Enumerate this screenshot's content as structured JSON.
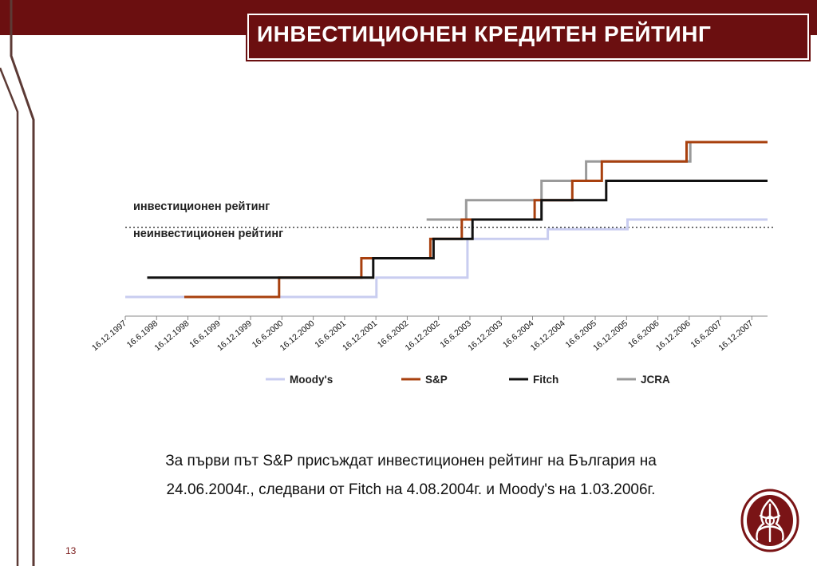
{
  "header": {
    "title": "ИНВЕСТИЦИОНЕН КРЕДИТЕН РЕЙТИНГ"
  },
  "zones": {
    "investment_label": "инвестиционен рейтинг",
    "non_investment_label": "неинвестиционен рейтинг"
  },
  "caption": {
    "line1": "За първи път S&P присъждат инвестиционен рейтинг на България на",
    "line2": "24.06.2004г., следвани от Fitch на 4.08.2004г. и Moody's на 1.03.2006г."
  },
  "page_number": "13",
  "colors": {
    "brand": "#6b0f10",
    "moodys": "#c9cdf0",
    "sp": "#a8400e",
    "fitch": "#111111",
    "jcra": "#9a9a9a"
  },
  "chart_data": {
    "type": "line",
    "step": true,
    "title": "",
    "xlabel": "",
    "ylabel": "",
    "x_ticks": [
      "16.12.1997",
      "16.6.1998",
      "16.12.1998",
      "16.6.1999",
      "16.12.1999",
      "16.6.2000",
      "16.12.2000",
      "16.6.2001",
      "16.12.2001",
      "16.6.2002",
      "16.12.2002",
      "16.6.2003",
      "16.12.2003",
      "16.6.2004",
      "16.12.2004",
      "16.6.2005",
      "16.12.2005",
      "16.6.2006",
      "16.12.2006",
      "16.6.2007",
      "16.12.2007"
    ],
    "x_range": [
      1997.96,
      2008.19
    ],
    "y_range": [
      0,
      9
    ],
    "y_unit": "rating steps (0 = lowest shown; investment grade threshold between 4 and 5)",
    "investment_threshold": 4.6,
    "grid": false,
    "legend_position": "bottom",
    "series": [
      {
        "name": "Moody's",
        "color": "#c9cdf0",
        "points": [
          [
            1997.96,
            1
          ],
          [
            2001.96,
            1
          ],
          [
            2001.96,
            2
          ],
          [
            2003.41,
            2
          ],
          [
            2003.41,
            4
          ],
          [
            2004.69,
            4
          ],
          [
            2004.69,
            4.5
          ],
          [
            2005.96,
            4.5
          ],
          [
            2005.96,
            5
          ],
          [
            2008.19,
            5
          ]
        ]
      },
      {
        "name": "S&P",
        "color": "#a8400e",
        "points": [
          [
            1998.9,
            1
          ],
          [
            2000.41,
            1
          ],
          [
            2000.41,
            2
          ],
          [
            2001.72,
            2
          ],
          [
            2001.72,
            3
          ],
          [
            2002.82,
            3
          ],
          [
            2002.82,
            4
          ],
          [
            2003.32,
            4
          ],
          [
            2003.32,
            5
          ],
          [
            2004.48,
            5
          ],
          [
            2004.48,
            6
          ],
          [
            2005.08,
            6
          ],
          [
            2005.08,
            7
          ],
          [
            2005.55,
            7
          ],
          [
            2005.55,
            8
          ],
          [
            2006.9,
            8
          ],
          [
            2006.9,
            9
          ],
          [
            2008.19,
            9
          ]
        ]
      },
      {
        "name": "Fitch",
        "color": "#111111",
        "points": [
          [
            1998.31,
            2
          ],
          [
            2001.91,
            2
          ],
          [
            2001.91,
            3
          ],
          [
            2002.87,
            3
          ],
          [
            2002.87,
            4
          ],
          [
            2003.49,
            4
          ],
          [
            2003.49,
            5
          ],
          [
            2004.59,
            5
          ],
          [
            2004.59,
            6
          ],
          [
            2005.62,
            6
          ],
          [
            2005.62,
            7
          ],
          [
            2008.19,
            7
          ]
        ]
      },
      {
        "name": "JCRA",
        "color": "#9a9a9a",
        "points": [
          [
            2002.76,
            5
          ],
          [
            2003.39,
            5
          ],
          [
            2003.39,
            6
          ],
          [
            2004.59,
            6
          ],
          [
            2004.59,
            7
          ],
          [
            2005.3,
            7
          ],
          [
            2005.3,
            8
          ],
          [
            2006.96,
            8
          ],
          [
            2006.96,
            9
          ],
          [
            2008.19,
            9
          ]
        ]
      }
    ]
  }
}
